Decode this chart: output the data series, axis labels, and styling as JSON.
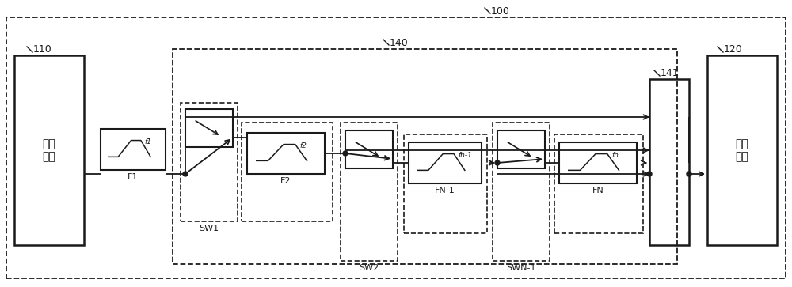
{
  "bg_color": "#ffffff",
  "line_color": "#1a1a1a",
  "fig_width": 10.0,
  "fig_height": 3.63,
  "labels": {
    "input_port": "输入\n端口",
    "output_port": "输出\n端口",
    "F1": "F1",
    "F2": "F2",
    "FN1": "FN-1",
    "FN": "FN",
    "SW1": "SW1",
    "SW2": "SW2",
    "SWN1": "SWN-1",
    "n100": "100",
    "n110": "110",
    "n120": "120",
    "n140": "140",
    "n141": "141",
    "f1": "f1",
    "f2": "f2",
    "fn1": "fn-1",
    "fn": "fn"
  }
}
